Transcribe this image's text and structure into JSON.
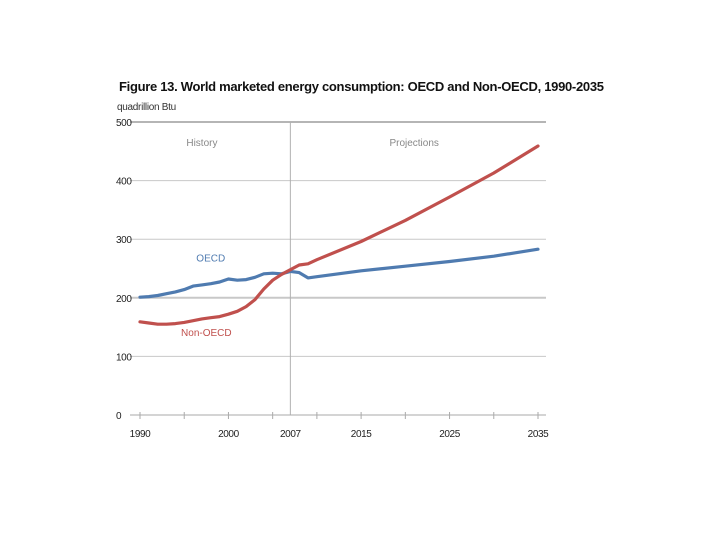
{
  "chart_data": {
    "type": "line",
    "title": "Figure 13. World marketed energy consumption: OECD and Non-OECD, 1990-2035",
    "ylabel": "quadrillion Btu",
    "xlabel": "",
    "xlim": [
      1990,
      2035
    ],
    "ylim": [
      0,
      500
    ],
    "yticks": [
      0,
      100,
      200,
      300,
      400,
      500
    ],
    "xtick_labels": [
      {
        "year": 1990,
        "label": "1990"
      },
      {
        "year": 2000,
        "label": "2000"
      },
      {
        "year": 2007,
        "label": "2007"
      },
      {
        "year": 2015,
        "label": "2015"
      },
      {
        "year": 2025,
        "label": "2025"
      },
      {
        "year": 2035,
        "label": "2035"
      }
    ],
    "xtick_marks": [
      1990,
      1995,
      2000,
      2005,
      2010,
      2015,
      2020,
      2025,
      2030,
      2035
    ],
    "grid": true,
    "divider_year": 2007,
    "regions": [
      {
        "label": "History",
        "x": 1997
      },
      {
        "label": "Projections",
        "x": 2021
      }
    ],
    "series": [
      {
        "name": "OECD",
        "color": "#4f7bb0",
        "label_pos": {
          "x": 1998,
          "y": 262
        },
        "x": [
          1990,
          1991,
          1992,
          1993,
          1994,
          1995,
          1996,
          1997,
          1998,
          1999,
          2000,
          2001,
          2002,
          2003,
          2004,
          2005,
          2006,
          2007,
          2008,
          2009,
          2010,
          2015,
          2020,
          2025,
          2030,
          2035
        ],
        "values": [
          201,
          202,
          204,
          207,
          210,
          214,
          220,
          222,
          224,
          227,
          232,
          230,
          231,
          235,
          241,
          242,
          241,
          245,
          243,
          234,
          236,
          246,
          254,
          262,
          271,
          283
        ]
      },
      {
        "name": "Non-OECD",
        "color": "#c0504d",
        "label_pos": {
          "x": 1997.5,
          "y": 135
        },
        "x": [
          1990,
          1991,
          1992,
          1993,
          1994,
          1995,
          1996,
          1997,
          1998,
          1999,
          2000,
          2001,
          2002,
          2003,
          2004,
          2005,
          2006,
          2007,
          2008,
          2009,
          2010,
          2015,
          2020,
          2025,
          2030,
          2035
        ],
        "values": [
          159,
          157,
          155,
          155,
          156,
          158,
          161,
          164,
          166,
          168,
          172,
          177,
          185,
          197,
          215,
          230,
          240,
          248,
          256,
          258,
          265,
          296,
          332,
          372,
          413,
          459
        ]
      }
    ]
  }
}
